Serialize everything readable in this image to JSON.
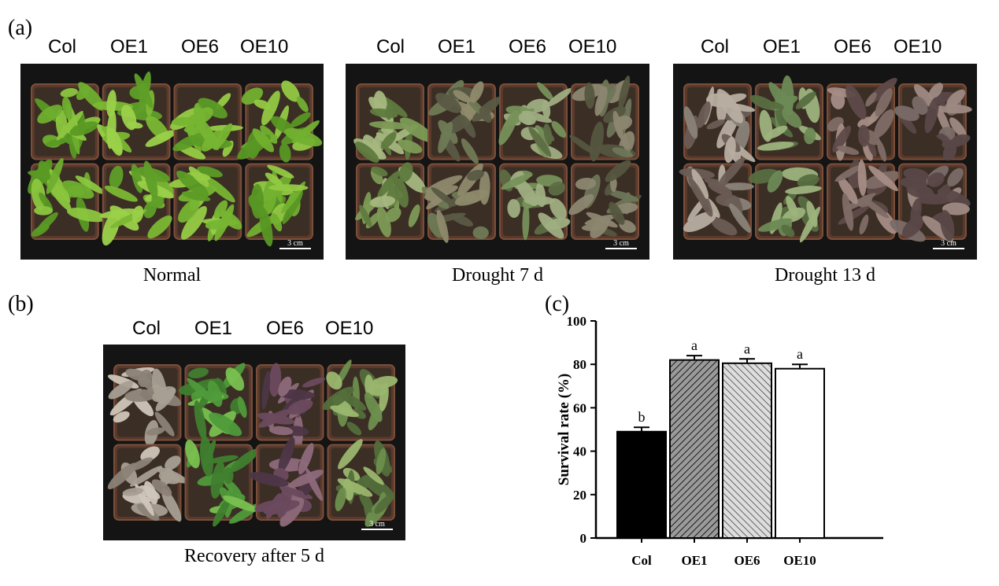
{
  "panel_a": {
    "letter": "(a)",
    "photos": [
      {
        "headers": [
          "Col",
          "OE1",
          "OE6",
          "OE10"
        ],
        "caption": "Normal",
        "scale_bar": "3 cm",
        "tone": "green"
      },
      {
        "headers": [
          "Col",
          "OE1",
          "OE6",
          "OE10"
        ],
        "caption": "Drought 7 d",
        "scale_bar": "3 cm",
        "tone": "drought7"
      },
      {
        "headers": [
          "Col",
          "OE1",
          "OE6",
          "OE10"
        ],
        "caption": "Drought 13 d",
        "scale_bar": "3 cm",
        "tone": "drought13"
      }
    ]
  },
  "panel_b": {
    "letter": "(b)",
    "headers": [
      "Col",
      "OE1",
      "OE6",
      "OE10"
    ],
    "caption": "Recovery after 5 d",
    "scale_bar": "3 cm",
    "tone": "recovery"
  },
  "panel_c": {
    "letter": "(c)"
  },
  "chart_data": {
    "type": "bar",
    "categories": [
      "Col",
      "OE1",
      "OE6",
      "OE10"
    ],
    "values": [
      49,
      82,
      80.5,
      78
    ],
    "errors": [
      2,
      2,
      2,
      2
    ],
    "significance": [
      "b",
      "a",
      "a",
      "a"
    ],
    "fills": [
      "solid-black",
      "dense-hatch",
      "light-hatch",
      "white"
    ],
    "ylabel": "Survival rate (%)",
    "xlabel": "",
    "ylim": [
      0,
      100
    ],
    "yticks": [
      0,
      20,
      40,
      60,
      80,
      100
    ],
    "grid": false,
    "legend": "none"
  }
}
